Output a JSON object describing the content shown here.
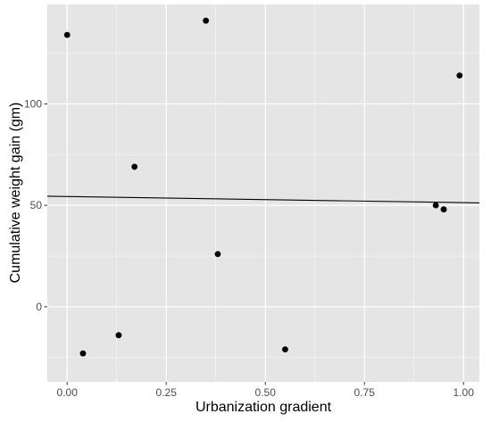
{
  "chart_data": {
    "type": "scatter",
    "xlabel": "Urbanization gradient",
    "ylabel": "Cumulative weight gain (gm)",
    "xlim": [
      -0.05,
      1.04
    ],
    "ylim": [
      -37,
      149
    ],
    "x_ticks": [
      0.0,
      0.25,
      0.5,
      0.75,
      1.0
    ],
    "x_tick_labels": [
      "0.00",
      "0.25",
      "0.50",
      "0.75",
      "1.00"
    ],
    "y_ticks": [
      0,
      50,
      100
    ],
    "y_tick_labels": [
      "0",
      "50",
      "100"
    ],
    "grid": true,
    "points": [
      {
        "x": 0.0,
        "y": 134
      },
      {
        "x": 0.04,
        "y": -23
      },
      {
        "x": 0.13,
        "y": -14
      },
      {
        "x": 0.17,
        "y": 69
      },
      {
        "x": 0.35,
        "y": 141
      },
      {
        "x": 0.38,
        "y": 26
      },
      {
        "x": 0.55,
        "y": -21
      },
      {
        "x": 0.93,
        "y": 50
      },
      {
        "x": 0.95,
        "y": 48
      },
      {
        "x": 0.99,
        "y": 114
      }
    ],
    "trend_line": {
      "x": [
        -0.05,
        1.04
      ],
      "y": [
        54.5,
        51.2
      ]
    },
    "colors": {
      "panel": "#e5e5e5",
      "grid_major": "#ffffff",
      "point": "#000000",
      "line": "#000000",
      "tick_text": "#4d4d4d"
    }
  }
}
